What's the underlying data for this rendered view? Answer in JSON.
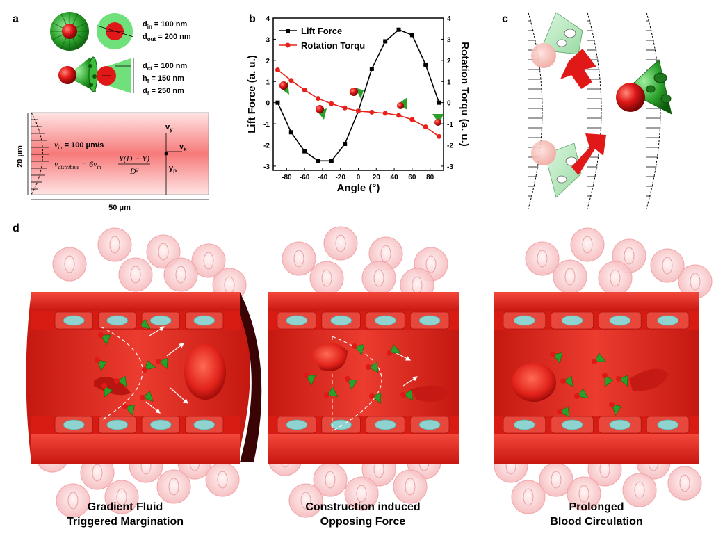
{
  "panels": {
    "a": "a",
    "b": "b",
    "c": "c",
    "d": "d"
  },
  "panel_a": {
    "sphere_dims": {
      "din": "d",
      "din_sub": "in",
      "din_val": " = 100 nm",
      "dout": "d",
      "dout_sub": "out",
      "dout_val": " = 200 nm"
    },
    "cone_dims": {
      "dct": "d",
      "dct_sub": "ct",
      "dct_val": " = 100 nm",
      "hf": "h",
      "hf_sub": "f",
      "hf_val": " = 150 nm",
      "df": "d",
      "df_sub": "f",
      "df_val": " = 250 nm"
    },
    "channel": {
      "vin": "v",
      "vin_sub": "in",
      "vin_val": " = 100 μm/s",
      "vdist": "v",
      "vdist_sub": "distribute",
      "vdist_eq": " = 6v",
      "vdist_eq_sub": "in",
      "numerator": "Y(D − Y)",
      "denominator": "D²",
      "height": "20 μm",
      "width": "50 μm",
      "vy": "v",
      "vy_sub": "y",
      "vx": "v",
      "vx_sub": "x",
      "yp": "y",
      "yp_sub": "p"
    }
  },
  "chart_data": {
    "type": "line",
    "title": "",
    "xlabel": "Angle (°)",
    "ylabel": "Lift Force (a. u.)",
    "y2label": "Rotation Torqu (a. u.)",
    "xlim": [
      -95,
      95
    ],
    "ylim": [
      -3.2,
      4
    ],
    "y2lim": [
      -3.2,
      4
    ],
    "xticks": [
      -80,
      -60,
      -40,
      -20,
      0,
      20,
      40,
      60,
      80
    ],
    "yticks": [
      -3,
      -2,
      -1,
      0,
      1,
      2,
      3,
      4
    ],
    "legend": "top-left",
    "series": [
      {
        "name": "Lift Force",
        "color": "#000000",
        "marker": "square",
        "axis": "left",
        "x": [
          -90,
          -75,
          -60,
          -45,
          -30,
          -15,
          0,
          15,
          30,
          45,
          60,
          75,
          90
        ],
        "values": [
          0,
          -1.4,
          -2.3,
          -2.75,
          -2.75,
          -1.95,
          -0.4,
          1.6,
          2.9,
          3.45,
          3.2,
          1.8,
          0
        ]
      },
      {
        "name": "Rotation Torqu",
        "color": "#e8201a",
        "marker": "circle",
        "axis": "right",
        "x": [
          -90,
          -75,
          -60,
          -45,
          -30,
          -15,
          0,
          15,
          30,
          45,
          60,
          75,
          90
        ],
        "values": [
          1.55,
          1.05,
          0.6,
          0.2,
          -0.05,
          -0.25,
          -0.4,
          -0.45,
          -0.5,
          -0.6,
          -0.8,
          -1.15,
          -1.6
        ]
      }
    ]
  },
  "panel_d": {
    "captions": [
      {
        "line1": "Gradient Fluid",
        "line2": "Triggered Margination"
      },
      {
        "line1": "Construction induced",
        "line2": "Opposing Force"
      },
      {
        "line1": "Prolonged",
        "line2": "Blood Circulation"
      }
    ]
  },
  "colors": {
    "vessel": "#e0241c",
    "vessel_dark": "#b0120e",
    "particle_green": "#2aa02a",
    "particle_red": "#e01818",
    "nucleus": "#8ed3cf"
  }
}
